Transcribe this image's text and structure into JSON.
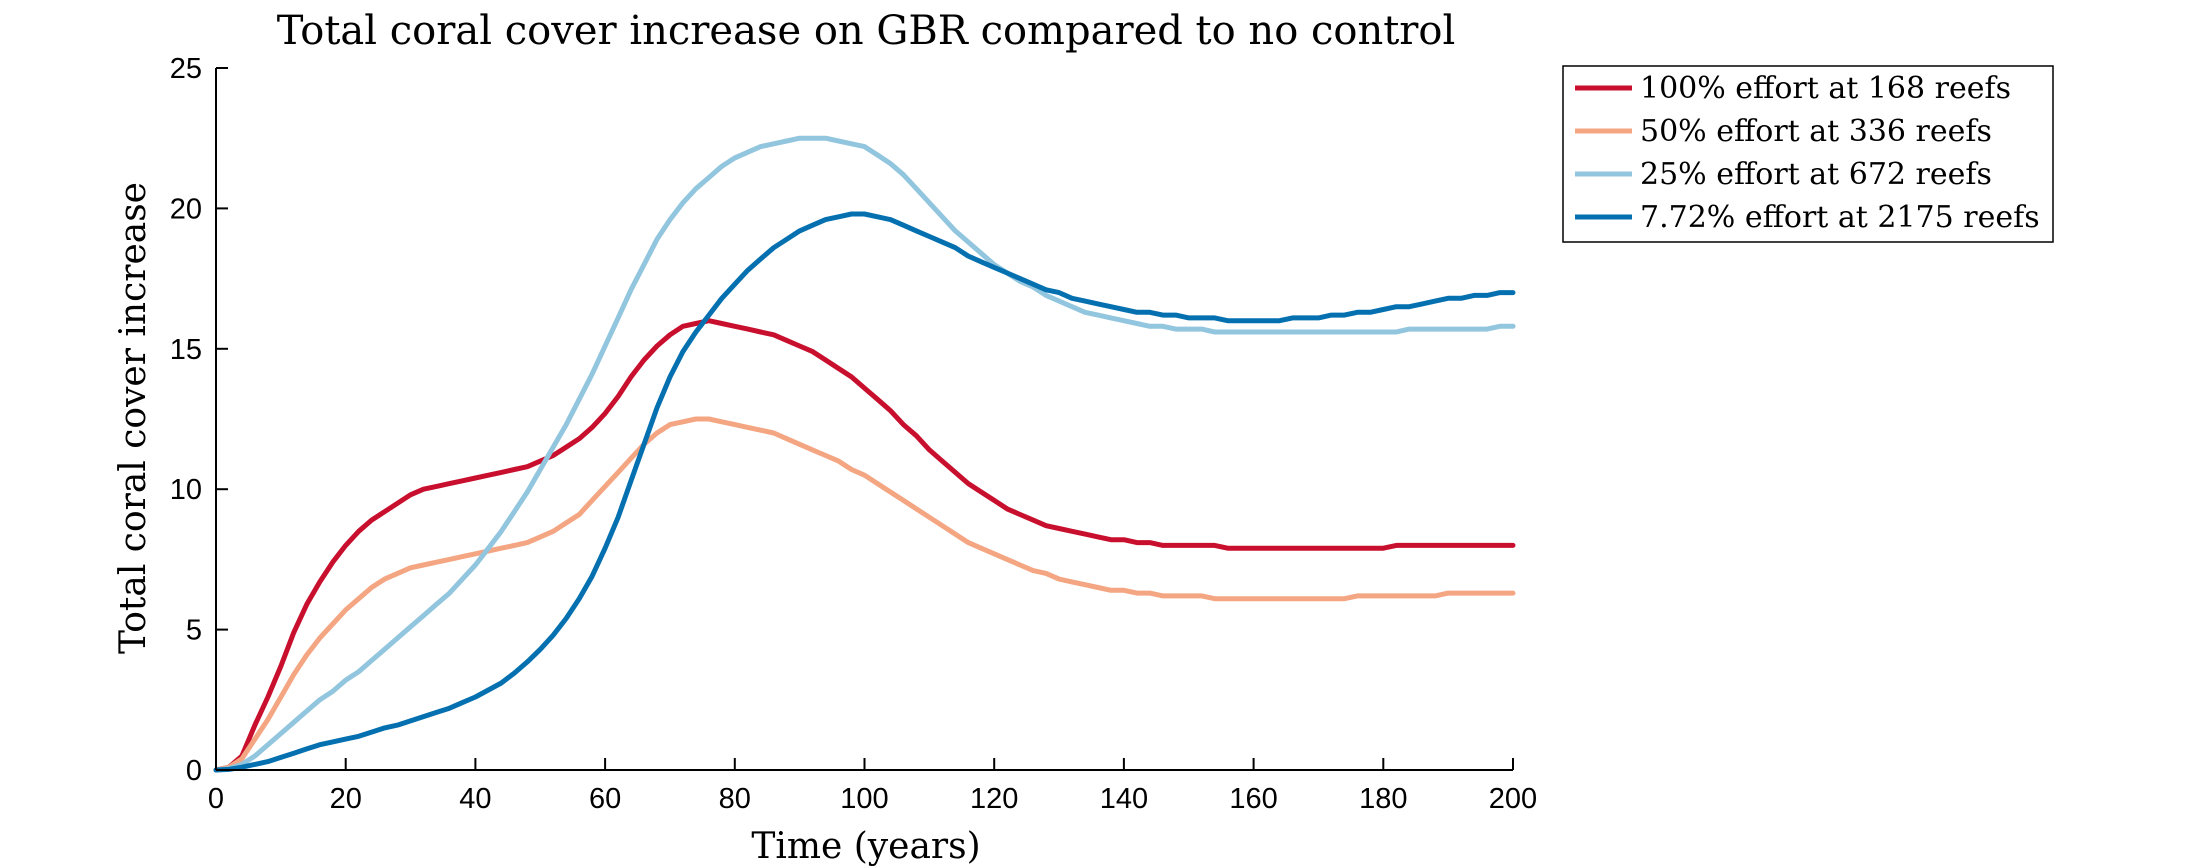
{
  "chart_data": {
    "type": "line",
    "title": "Total coral cover increase on GBR compared to no control",
    "xlabel": "Time (years)",
    "ylabel": "Total coral cover increase",
    "xlim": [
      0,
      200
    ],
    "ylim": [
      0,
      25
    ],
    "xticks": [
      "0",
      "20",
      "40",
      "60",
      "80",
      "100",
      "120",
      "140",
      "160",
      "180",
      "200"
    ],
    "yticks": [
      "0",
      "5",
      "10",
      "15",
      "20",
      "25"
    ],
    "grid": false,
    "legend_position": "top-right-outside",
    "x": [
      0,
      2,
      4,
      6,
      8,
      10,
      12,
      14,
      16,
      18,
      20,
      22,
      24,
      26,
      28,
      30,
      32,
      34,
      36,
      38,
      40,
      42,
      44,
      46,
      48,
      50,
      52,
      54,
      56,
      58,
      60,
      62,
      64,
      66,
      68,
      70,
      72,
      74,
      76,
      78,
      80,
      82,
      84,
      86,
      88,
      90,
      92,
      94,
      96,
      98,
      100,
      102,
      104,
      106,
      108,
      110,
      112,
      114,
      116,
      118,
      120,
      122,
      124,
      126,
      128,
      130,
      132,
      134,
      136,
      138,
      140,
      142,
      144,
      146,
      148,
      150,
      152,
      154,
      156,
      158,
      160,
      162,
      164,
      166,
      168,
      170,
      172,
      174,
      176,
      178,
      180,
      182,
      184,
      186,
      188,
      190,
      192,
      194,
      196,
      198,
      200
    ],
    "series": [
      {
        "name": "100% effort at 168 reefs",
        "color": "#c8102e",
        "values": [
          0,
          0.1,
          0.5,
          1.6,
          2.6,
          3.7,
          4.9,
          5.9,
          6.7,
          7.4,
          8.0,
          8.5,
          8.9,
          9.2,
          9.5,
          9.8,
          10.0,
          10.1,
          10.2,
          10.3,
          10.4,
          10.5,
          10.6,
          10.7,
          10.8,
          11.0,
          11.2,
          11.5,
          11.8,
          12.2,
          12.7,
          13.3,
          14.0,
          14.6,
          15.1,
          15.5,
          15.8,
          15.9,
          16.0,
          15.9,
          15.8,
          15.7,
          15.6,
          15.5,
          15.3,
          15.1,
          14.9,
          14.6,
          14.3,
          14.0,
          13.6,
          13.2,
          12.8,
          12.3,
          11.9,
          11.4,
          11.0,
          10.6,
          10.2,
          9.9,
          9.6,
          9.3,
          9.1,
          8.9,
          8.7,
          8.6,
          8.5,
          8.4,
          8.3,
          8.2,
          8.2,
          8.1,
          8.1,
          8.0,
          8.0,
          8.0,
          8.0,
          8.0,
          7.9,
          7.9,
          7.9,
          7.9,
          7.9,
          7.9,
          7.9,
          7.9,
          7.9,
          7.9,
          7.9,
          7.9,
          7.9,
          8.0,
          8.0,
          8.0,
          8.0,
          8.0,
          8.0,
          8.0,
          8.0,
          8.0,
          8.0
        ]
      },
      {
        "name": "50% effort at 336 reefs",
        "color": "#f4a582",
        "values": [
          0,
          0.1,
          0.4,
          1.1,
          1.8,
          2.6,
          3.4,
          4.1,
          4.7,
          5.2,
          5.7,
          6.1,
          6.5,
          6.8,
          7.0,
          7.2,
          7.3,
          7.4,
          7.5,
          7.6,
          7.7,
          7.8,
          7.9,
          8.0,
          8.1,
          8.3,
          8.5,
          8.8,
          9.1,
          9.6,
          10.1,
          10.6,
          11.1,
          11.6,
          12.0,
          12.3,
          12.4,
          12.5,
          12.5,
          12.4,
          12.3,
          12.2,
          12.1,
          12.0,
          11.8,
          11.6,
          11.4,
          11.2,
          11.0,
          10.7,
          10.5,
          10.2,
          9.9,
          9.6,
          9.3,
          9.0,
          8.7,
          8.4,
          8.1,
          7.9,
          7.7,
          7.5,
          7.3,
          7.1,
          7.0,
          6.8,
          6.7,
          6.6,
          6.5,
          6.4,
          6.4,
          6.3,
          6.3,
          6.2,
          6.2,
          6.2,
          6.2,
          6.1,
          6.1,
          6.1,
          6.1,
          6.1,
          6.1,
          6.1,
          6.1,
          6.1,
          6.1,
          6.1,
          6.2,
          6.2,
          6.2,
          6.2,
          6.2,
          6.2,
          6.2,
          6.3,
          6.3,
          6.3,
          6.3,
          6.3,
          6.3
        ]
      },
      {
        "name": "25% effort at 672 reefs",
        "color": "#92c5de",
        "values": [
          0,
          0.05,
          0.2,
          0.5,
          0.9,
          1.3,
          1.7,
          2.1,
          2.5,
          2.8,
          3.2,
          3.5,
          3.9,
          4.3,
          4.7,
          5.1,
          5.5,
          5.9,
          6.3,
          6.8,
          7.3,
          7.9,
          8.5,
          9.2,
          9.9,
          10.7,
          11.5,
          12.3,
          13.2,
          14.1,
          15.1,
          16.1,
          17.1,
          18.0,
          18.9,
          19.6,
          20.2,
          20.7,
          21.1,
          21.5,
          21.8,
          22.0,
          22.2,
          22.3,
          22.4,
          22.5,
          22.5,
          22.5,
          22.4,
          22.3,
          22.2,
          21.9,
          21.6,
          21.2,
          20.7,
          20.2,
          19.7,
          19.2,
          18.8,
          18.4,
          18.0,
          17.7,
          17.4,
          17.2,
          16.9,
          16.7,
          16.5,
          16.3,
          16.2,
          16.1,
          16.0,
          15.9,
          15.8,
          15.8,
          15.7,
          15.7,
          15.7,
          15.6,
          15.6,
          15.6,
          15.6,
          15.6,
          15.6,
          15.6,
          15.6,
          15.6,
          15.6,
          15.6,
          15.6,
          15.6,
          15.6,
          15.6,
          15.7,
          15.7,
          15.7,
          15.7,
          15.7,
          15.7,
          15.7,
          15.8,
          15.8
        ]
      },
      {
        "name": "7.72% effort at 2175 reefs",
        "color": "#0570b0",
        "values": [
          0,
          0.02,
          0.1,
          0.2,
          0.3,
          0.45,
          0.6,
          0.75,
          0.9,
          1.0,
          1.1,
          1.2,
          1.35,
          1.5,
          1.6,
          1.75,
          1.9,
          2.05,
          2.2,
          2.4,
          2.6,
          2.85,
          3.1,
          3.45,
          3.85,
          4.3,
          4.8,
          5.4,
          6.1,
          6.9,
          7.9,
          9.0,
          10.3,
          11.6,
          12.9,
          14.0,
          14.9,
          15.6,
          16.2,
          16.8,
          17.3,
          17.8,
          18.2,
          18.6,
          18.9,
          19.2,
          19.4,
          19.6,
          19.7,
          19.8,
          19.8,
          19.7,
          19.6,
          19.4,
          19.2,
          19.0,
          18.8,
          18.6,
          18.3,
          18.1,
          17.9,
          17.7,
          17.5,
          17.3,
          17.1,
          17.0,
          16.8,
          16.7,
          16.6,
          16.5,
          16.4,
          16.3,
          16.3,
          16.2,
          16.2,
          16.1,
          16.1,
          16.1,
          16.0,
          16.0,
          16.0,
          16.0,
          16.0,
          16.1,
          16.1,
          16.1,
          16.2,
          16.2,
          16.3,
          16.3,
          16.4,
          16.5,
          16.5,
          16.6,
          16.7,
          16.8,
          16.8,
          16.9,
          16.9,
          17.0,
          17.0
        ]
      }
    ]
  }
}
